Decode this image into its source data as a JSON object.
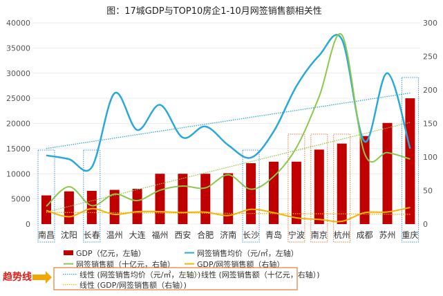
{
  "chart_data": {
    "type": "bar",
    "title": "图：17城GDP与TOP10房企1-10月网签销售额相关性",
    "categories": [
      "南昌",
      "沈阳",
      "长春",
      "温州",
      "大连",
      "福州",
      "西安",
      "合肥",
      "济南",
      "长沙",
      "青岛",
      "宁波",
      "南京",
      "杭州",
      "成都",
      "苏州",
      "重庆"
    ],
    "left_axis": {
      "range": [
        0,
        40000
      ],
      "ticks": [
        "0",
        "5000",
        "10000",
        "15000",
        "20000",
        "25000",
        "30000",
        "35000",
        "40000"
      ]
    },
    "right_axis": {
      "range": [
        0,
        300
      ],
      "ticks": [
        "0",
        "50",
        "100",
        "150",
        "200",
        "250",
        "300"
      ]
    },
    "grid": true,
    "series": [
      {
        "name": "GDP（亿元，左轴）",
        "type": "bar",
        "axis": "left",
        "color": "#c00000",
        "values": [
          5700,
          6500,
          6600,
          6800,
          7000,
          10000,
          10000,
          10000,
          10100,
          12100,
          12400,
          12400,
          14800,
          16000,
          17500,
          20100,
          25000
        ]
      },
      {
        "name": "网签销售均价（元/㎡，左轴）",
        "type": "line",
        "axis": "left",
        "color": "#29a9d8",
        "values": [
          13650,
          12900,
          11300,
          26000,
          18700,
          23700,
          17200,
          19400,
          15700,
          13200,
          18400,
          27400,
          33500,
          36700,
          16400,
          30000,
          15000
        ]
      },
      {
        "name": "网签销售额（十亿元，右轴）",
        "type": "line",
        "axis": "right",
        "color": "#8cc84b",
        "values": [
          26.5,
          55.7,
          27.5,
          44.7,
          35,
          50.5,
          56.7,
          54,
          73.5,
          52,
          71,
          114,
          190,
          282,
          105,
          106.5,
          97
        ]
      },
      {
        "name": "GDP/网签销售额（右轴）",
        "type": "line",
        "axis": "right",
        "color": "#f5b400",
        "values": [
          20.3,
          11,
          23,
          14.4,
          18.5,
          18.5,
          17.2,
          17.8,
          12.7,
          22,
          17,
          9.3,
          6.9,
          4.1,
          17,
          18,
          24.7
        ]
      }
    ],
    "trendlines": [
      {
        "name": "线性 (网签销售均价（元/㎡，左轴）)",
        "of": 1,
        "color": "#29a9d8"
      },
      {
        "name": "线性 (网签销售额（十亿元，右轴）)",
        "of": 2,
        "color": "#8cc84b"
      },
      {
        "name": "线性 (GDP/网签销售额（右轴）)",
        "of": 3,
        "color": "#f5b400"
      }
    ],
    "highlights": {
      "blue": [
        "南昌",
        "长春",
        "长沙",
        "重庆"
      ],
      "orange": [
        "宁波",
        "南京",
        "杭州"
      ],
      "blue_color": "#4a90d9",
      "orange_color": "#e07b39"
    },
    "annotation": {
      "label": "趋势线",
      "color": "#e0201b",
      "arrow_color": "#f0a800",
      "box_color": "#e07b39"
    }
  }
}
